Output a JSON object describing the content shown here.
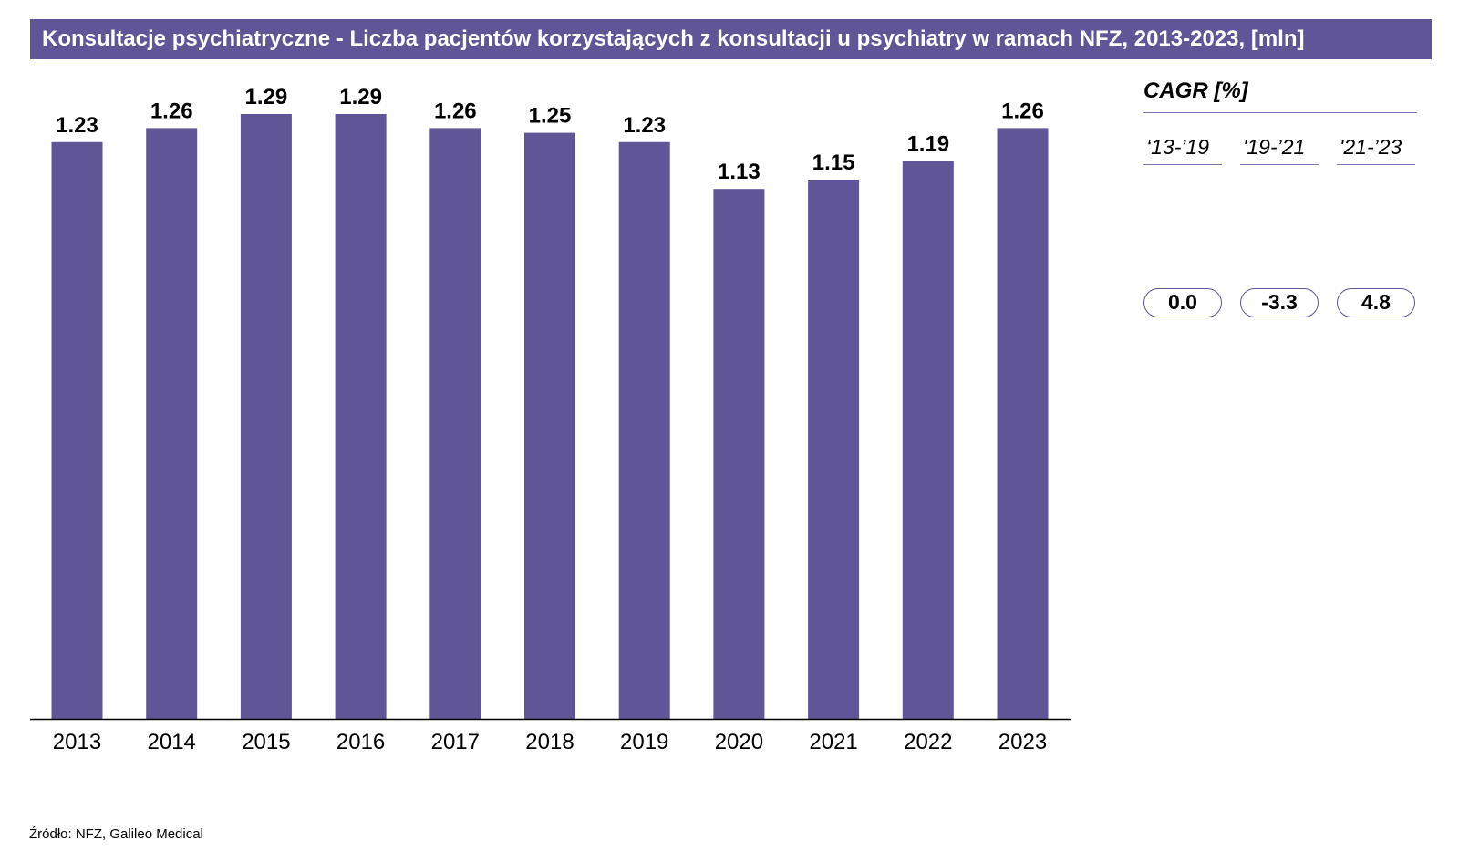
{
  "title": "Konsultacje psychiatryczne - Liczba pacjentów korzystających z konsultacji u psychiatry w ramach NFZ, 2013-2023, [mln]",
  "colors": {
    "bar": "#5f5597",
    "title_bg": "#5f5597"
  },
  "chart_data": {
    "type": "bar",
    "title": "Konsultacje psychiatryczne - Liczba pacjentów korzystających z konsultacji u psychiatry w ramach NFZ, 2013-2023, [mln]",
    "categories": [
      "2013",
      "2014",
      "2015",
      "2016",
      "2017",
      "2018",
      "2019",
      "2020",
      "2021",
      "2022",
      "2023"
    ],
    "values": [
      1.23,
      1.26,
      1.29,
      1.29,
      1.26,
      1.25,
      1.23,
      1.13,
      1.15,
      1.19,
      1.26
    ],
    "value_labels": [
      "1.23",
      "1.26",
      "1.29",
      "1.29",
      "1.26",
      "1.25",
      "1.23",
      "1.13",
      "1.15",
      "1.19",
      "1.26"
    ],
    "xlabel": "",
    "ylabel": "",
    "ylim": [
      0,
      1.29
    ],
    "grid": false,
    "legend": "none"
  },
  "cagr": {
    "title": "CAGR [%]",
    "periods": [
      "‘13-’19",
      "'19-’21",
      "'21-’23"
    ],
    "values": [
      "0.0",
      "-3.3",
      "4.8"
    ]
  },
  "source": "Źródło: NFZ, Galileo Medical"
}
